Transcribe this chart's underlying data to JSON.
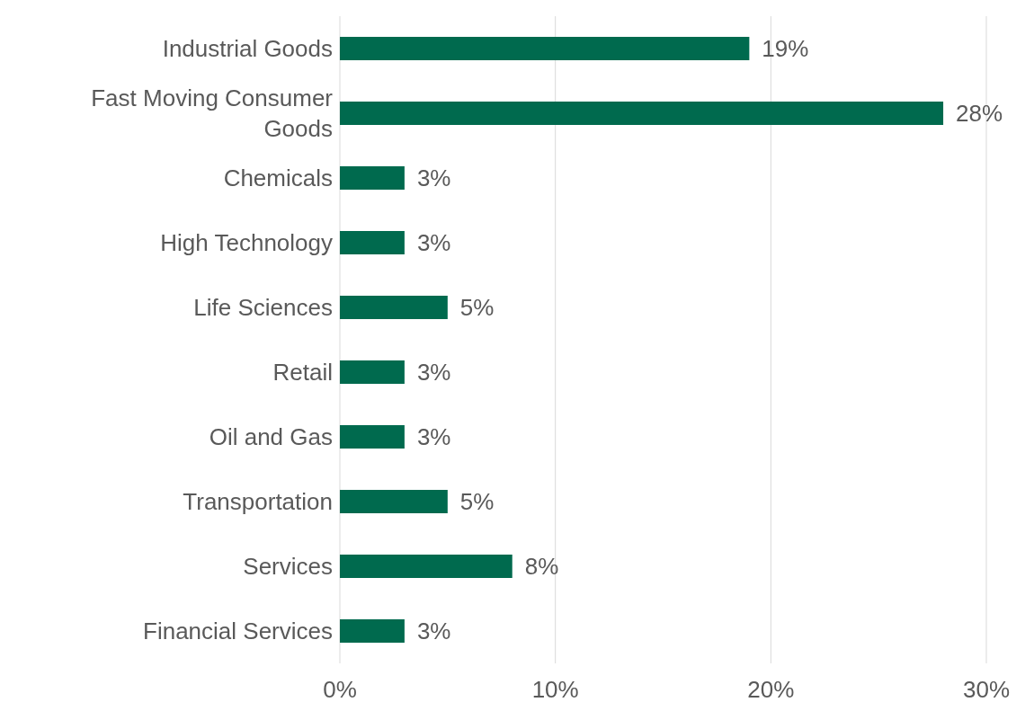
{
  "chart_data": {
    "type": "bar",
    "orientation": "horizontal",
    "categories": [
      "Industrial Goods",
      "Fast Moving Consumer Goods",
      "Chemicals",
      "High Technology",
      "Life Sciences",
      "Retail",
      "Oil and Gas",
      "Transportation",
      "Services",
      "Financial Services"
    ],
    "values": [
      19,
      28,
      3,
      3,
      5,
      3,
      3,
      5,
      8,
      3
    ],
    "value_labels": [
      "19%",
      "28%",
      "3%",
      "3%",
      "5%",
      "3%",
      "3%",
      "5%",
      "8%",
      "3%"
    ],
    "color": "#006a4e",
    "xlim": [
      0,
      30
    ],
    "xticks": [
      {
        "value": 0,
        "label": "0%"
      },
      {
        "value": 10,
        "label": "10%"
      },
      {
        "value": 20,
        "label": "20%"
      },
      {
        "value": 30,
        "label": "30%"
      }
    ],
    "grid": "x",
    "legend": false
  }
}
